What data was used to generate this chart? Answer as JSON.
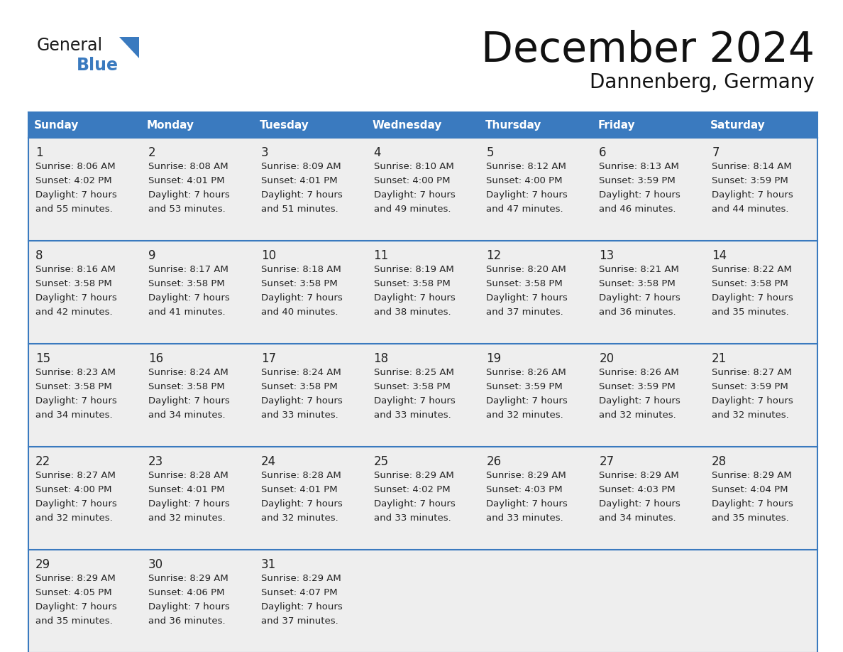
{
  "title": "December 2024",
  "subtitle": "Dannenberg, Germany",
  "days_of_week": [
    "Sunday",
    "Monday",
    "Tuesday",
    "Wednesday",
    "Thursday",
    "Friday",
    "Saturday"
  ],
  "header_bg": "#3a7abf",
  "header_text": "#FFFFFF",
  "cell_bg": "#eeeeee",
  "border_color": "#3a7abf",
  "text_color": "#222222",
  "day_num_color": "#222222",
  "logo_general_color": "#1a1a1a",
  "logo_blue_color": "#3a7abf",
  "logo_triangle_color": "#3a7abf",
  "calendar_data": [
    [
      {
        "day": 1,
        "sunrise": "8:06 AM",
        "sunset": "4:02 PM",
        "daylight": "7 hours and 55 minutes"
      },
      {
        "day": 2,
        "sunrise": "8:08 AM",
        "sunset": "4:01 PM",
        "daylight": "7 hours and 53 minutes"
      },
      {
        "day": 3,
        "sunrise": "8:09 AM",
        "sunset": "4:01 PM",
        "daylight": "7 hours and 51 minutes"
      },
      {
        "day": 4,
        "sunrise": "8:10 AM",
        "sunset": "4:00 PM",
        "daylight": "7 hours and 49 minutes"
      },
      {
        "day": 5,
        "sunrise": "8:12 AM",
        "sunset": "4:00 PM",
        "daylight": "7 hours and 47 minutes"
      },
      {
        "day": 6,
        "sunrise": "8:13 AM",
        "sunset": "3:59 PM",
        "daylight": "7 hours and 46 minutes"
      },
      {
        "day": 7,
        "sunrise": "8:14 AM",
        "sunset": "3:59 PM",
        "daylight": "7 hours and 44 minutes"
      }
    ],
    [
      {
        "day": 8,
        "sunrise": "8:16 AM",
        "sunset": "3:58 PM",
        "daylight": "7 hours and 42 minutes"
      },
      {
        "day": 9,
        "sunrise": "8:17 AM",
        "sunset": "3:58 PM",
        "daylight": "7 hours and 41 minutes"
      },
      {
        "day": 10,
        "sunrise": "8:18 AM",
        "sunset": "3:58 PM",
        "daylight": "7 hours and 40 minutes"
      },
      {
        "day": 11,
        "sunrise": "8:19 AM",
        "sunset": "3:58 PM",
        "daylight": "7 hours and 38 minutes"
      },
      {
        "day": 12,
        "sunrise": "8:20 AM",
        "sunset": "3:58 PM",
        "daylight": "7 hours and 37 minutes"
      },
      {
        "day": 13,
        "sunrise": "8:21 AM",
        "sunset": "3:58 PM",
        "daylight": "7 hours and 36 minutes"
      },
      {
        "day": 14,
        "sunrise": "8:22 AM",
        "sunset": "3:58 PM",
        "daylight": "7 hours and 35 minutes"
      }
    ],
    [
      {
        "day": 15,
        "sunrise": "8:23 AM",
        "sunset": "3:58 PM",
        "daylight": "7 hours and 34 minutes"
      },
      {
        "day": 16,
        "sunrise": "8:24 AM",
        "sunset": "3:58 PM",
        "daylight": "7 hours and 34 minutes"
      },
      {
        "day": 17,
        "sunrise": "8:24 AM",
        "sunset": "3:58 PM",
        "daylight": "7 hours and 33 minutes"
      },
      {
        "day": 18,
        "sunrise": "8:25 AM",
        "sunset": "3:58 PM",
        "daylight": "7 hours and 33 minutes"
      },
      {
        "day": 19,
        "sunrise": "8:26 AM",
        "sunset": "3:59 PM",
        "daylight": "7 hours and 32 minutes"
      },
      {
        "day": 20,
        "sunrise": "8:26 AM",
        "sunset": "3:59 PM",
        "daylight": "7 hours and 32 minutes"
      },
      {
        "day": 21,
        "sunrise": "8:27 AM",
        "sunset": "3:59 PM",
        "daylight": "7 hours and 32 minutes"
      }
    ],
    [
      {
        "day": 22,
        "sunrise": "8:27 AM",
        "sunset": "4:00 PM",
        "daylight": "7 hours and 32 minutes"
      },
      {
        "day": 23,
        "sunrise": "8:28 AM",
        "sunset": "4:01 PM",
        "daylight": "7 hours and 32 minutes"
      },
      {
        "day": 24,
        "sunrise": "8:28 AM",
        "sunset": "4:01 PM",
        "daylight": "7 hours and 32 minutes"
      },
      {
        "day": 25,
        "sunrise": "8:29 AM",
        "sunset": "4:02 PM",
        "daylight": "7 hours and 33 minutes"
      },
      {
        "day": 26,
        "sunrise": "8:29 AM",
        "sunset": "4:03 PM",
        "daylight": "7 hours and 33 minutes"
      },
      {
        "day": 27,
        "sunrise": "8:29 AM",
        "sunset": "4:03 PM",
        "daylight": "7 hours and 34 minutes"
      },
      {
        "day": 28,
        "sunrise": "8:29 AM",
        "sunset": "4:04 PM",
        "daylight": "7 hours and 35 minutes"
      }
    ],
    [
      {
        "day": 29,
        "sunrise": "8:29 AM",
        "sunset": "4:05 PM",
        "daylight": "7 hours and 35 minutes"
      },
      {
        "day": 30,
        "sunrise": "8:29 AM",
        "sunset": "4:06 PM",
        "daylight": "7 hours and 36 minutes"
      },
      {
        "day": 31,
        "sunrise": "8:29 AM",
        "sunset": "4:07 PM",
        "daylight": "7 hours and 37 minutes"
      },
      null,
      null,
      null,
      null
    ]
  ]
}
